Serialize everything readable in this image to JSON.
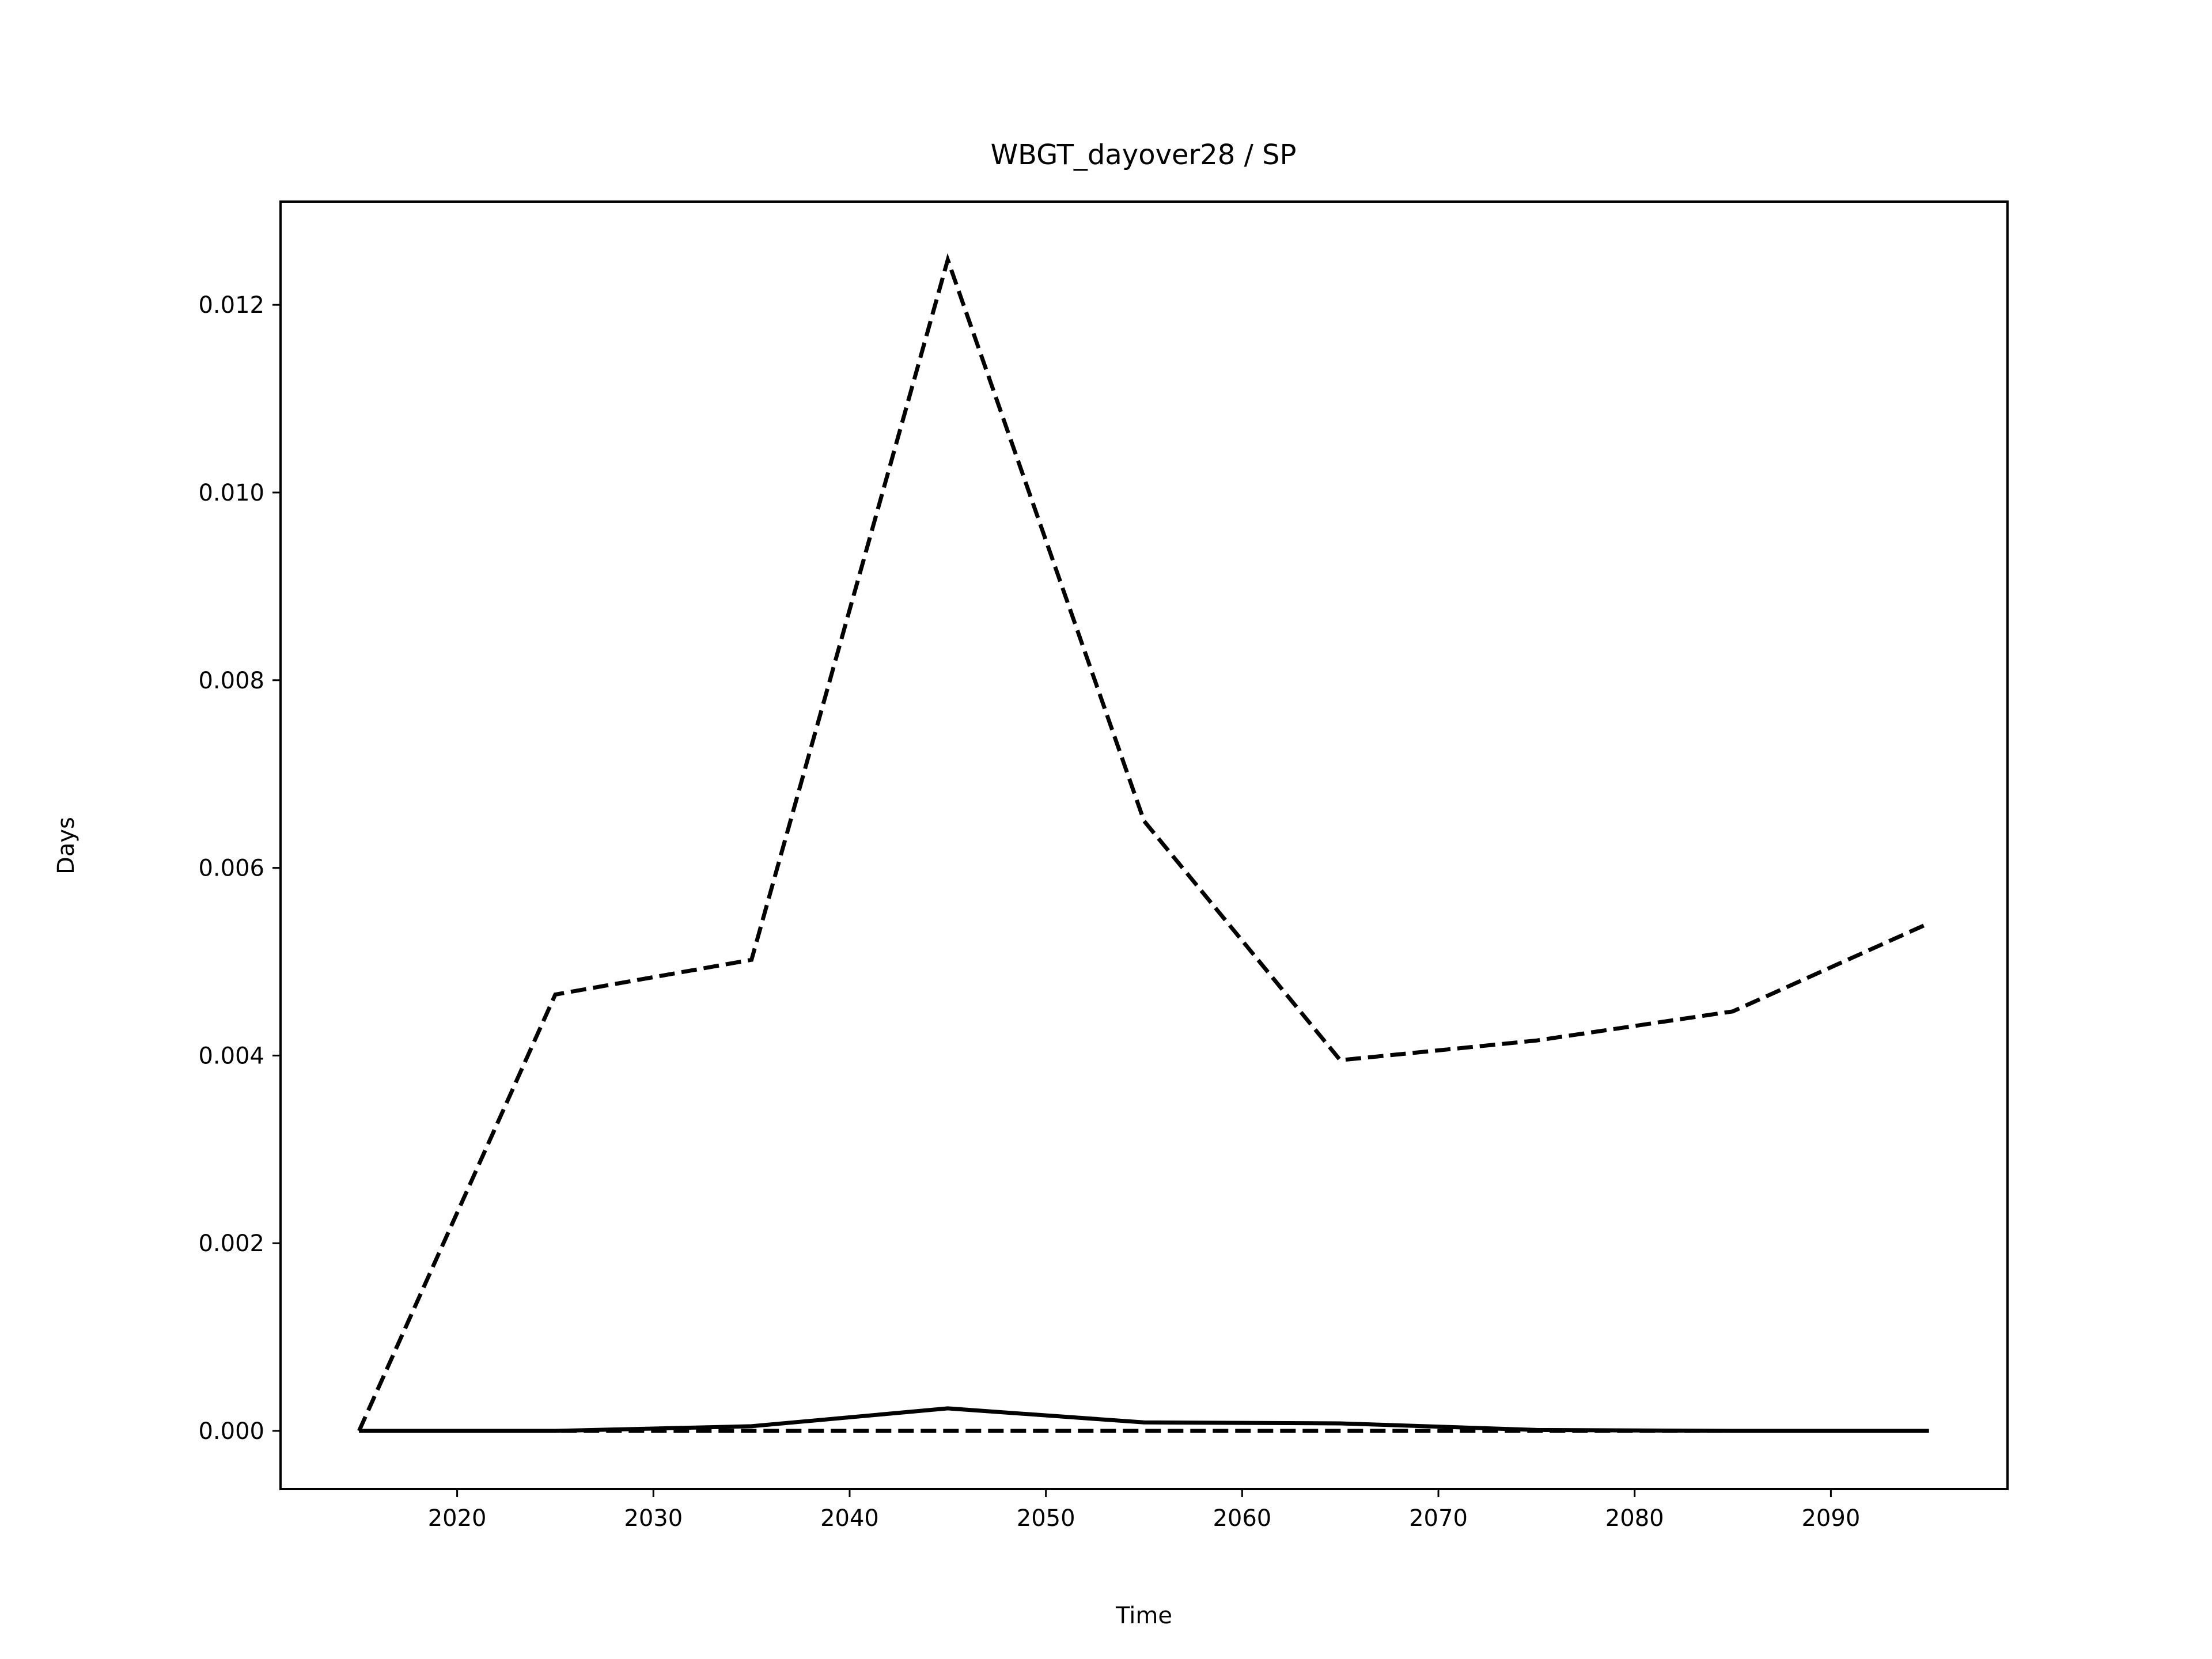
{
  "chart_data": {
    "type": "line",
    "title": "WBGT_dayover28 / SP",
    "xlabel": "Time",
    "ylabel": "Days",
    "x": [
      2015,
      2025,
      2035,
      2045,
      2055,
      2065,
      2075,
      2085,
      2095
    ],
    "xticks": [
      2020,
      2030,
      2040,
      2050,
      2060,
      2070,
      2080,
      2090
    ],
    "yticks": [
      0.0,
      0.002,
      0.004,
      0.006,
      0.008,
      0.01,
      0.012
    ],
    "ytick_labels": [
      "0.000",
      "0.002",
      "0.004",
      "0.006",
      "0.008",
      "0.010",
      "0.012"
    ],
    "xlim": [
      2011,
      2099
    ],
    "ylim": [
      -0.00062,
      0.0131
    ],
    "grid": false,
    "series": [
      {
        "style": "dashed",
        "color": "#000000",
        "values": [
          0.0,
          0.00465,
          0.00502,
          0.01248,
          0.0065,
          0.00395,
          0.00416,
          0.00447,
          0.00541
        ]
      },
      {
        "style": "solid",
        "color": "#000000",
        "values": [
          0.0,
          0.0,
          5e-05,
          0.00024,
          9e-05,
          8e-05,
          1e-05,
          0.0,
          0.0
        ]
      },
      {
        "style": "dashed",
        "color": "#000000",
        "values": [
          0.0,
          0.0,
          0.0,
          0.0,
          0.0,
          0.0,
          0.0,
          0.0,
          0.0
        ]
      }
    ]
  }
}
